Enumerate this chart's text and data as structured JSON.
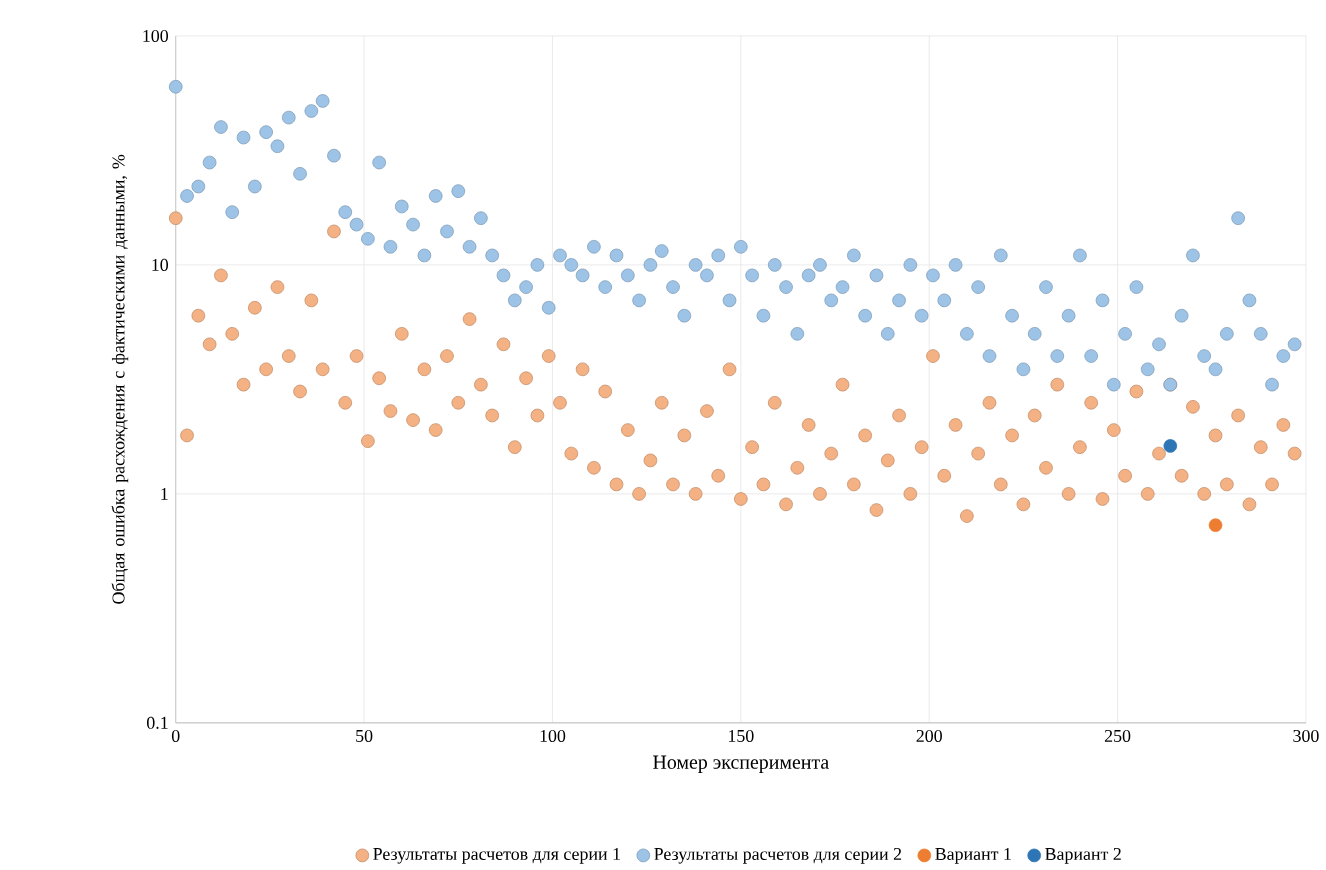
{
  "chart_data": {
    "type": "scatter",
    "xlabel": "Номер эксперимента",
    "ylabel": "Общая ошибка расхождения с фактическими данными, %",
    "xlim": [
      0,
      300
    ],
    "xticks": [
      0,
      50,
      100,
      150,
      200,
      250,
      300
    ],
    "ylim": [
      0.1,
      100
    ],
    "yticks": [
      0.1,
      1,
      10,
      100
    ],
    "log": "y",
    "grid": true,
    "legend": "bottom",
    "marker": "circle",
    "series": [
      {
        "name": "Результаты  расчетов для серии 1",
        "color": "#f4b183",
        "x": [
          0,
          3,
          6,
          9,
          12,
          15,
          18,
          21,
          24,
          27,
          30,
          33,
          36,
          39,
          42,
          45,
          48,
          51,
          54,
          57,
          60,
          63,
          66,
          69,
          72,
          75,
          78,
          81,
          84,
          87,
          90,
          93,
          96,
          99,
          102,
          105,
          108,
          111,
          114,
          117,
          120,
          123,
          126,
          129,
          132,
          135,
          138,
          141,
          144,
          147,
          150,
          153,
          156,
          159,
          162,
          165,
          168,
          171,
          174,
          177,
          180,
          183,
          186,
          189,
          192,
          195,
          198,
          201,
          204,
          207,
          210,
          213,
          216,
          219,
          222,
          225,
          228,
          231,
          234,
          237,
          240,
          243,
          246,
          249,
          252,
          255,
          258,
          261,
          264,
          267,
          270,
          273,
          276,
          279,
          282,
          285,
          288,
          291,
          294,
          297
        ],
        "values": [
          16,
          1.8,
          6,
          4.5,
          9,
          5,
          3,
          6.5,
          3.5,
          8,
          4,
          2.8,
          7,
          3.5,
          14,
          2.5,
          4,
          1.7,
          3.2,
          2.3,
          5,
          2.1,
          3.5,
          1.9,
          4,
          2.5,
          5.8,
          3,
          2.2,
          4.5,
          1.6,
          3.2,
          2.2,
          4,
          2.5,
          1.5,
          3.5,
          1.3,
          2.8,
          1.1,
          1.9,
          1.0,
          1.4,
          2.5,
          1.1,
          1.8,
          1.0,
          2.3,
          1.2,
          3.5,
          0.95,
          1.6,
          1.1,
          2.5,
          0.9,
          1.3,
          2.0,
          1.0,
          1.5,
          3.0,
          1.1,
          1.8,
          0.85,
          1.4,
          2.2,
          1.0,
          1.6,
          4.0,
          1.2,
          2.0,
          0.8,
          1.5,
          2.5,
          1.1,
          1.8,
          0.9,
          2.2,
          1.3,
          3.0,
          1.0,
          1.6,
          2.5,
          0.95,
          1.9,
          1.2,
          2.8,
          1.0,
          1.5,
          3.0,
          1.2,
          2.4,
          1.0,
          1.8,
          1.1,
          2.2,
          0.9,
          1.6,
          1.1,
          2.0,
          1.5
        ]
      },
      {
        "name": "Результаты  расчетов для серии 2",
        "color": "#9dc3e6",
        "x": [
          0,
          3,
          6,
          9,
          12,
          15,
          18,
          21,
          24,
          27,
          30,
          33,
          36,
          39,
          42,
          45,
          48,
          51,
          54,
          57,
          60,
          63,
          66,
          69,
          72,
          75,
          78,
          81,
          84,
          87,
          90,
          93,
          96,
          99,
          102,
          105,
          108,
          111,
          114,
          117,
          120,
          123,
          126,
          129,
          132,
          135,
          138,
          141,
          144,
          147,
          150,
          153,
          156,
          159,
          162,
          165,
          168,
          171,
          174,
          177,
          180,
          183,
          186,
          189,
          192,
          195,
          198,
          201,
          204,
          207,
          210,
          213,
          216,
          219,
          222,
          225,
          228,
          231,
          234,
          237,
          240,
          243,
          246,
          249,
          252,
          255,
          258,
          261,
          264,
          267,
          270,
          273,
          276,
          279,
          282,
          285,
          288,
          291,
          294,
          297
        ],
        "values": [
          60,
          20,
          22,
          28,
          40,
          17,
          36,
          22,
          38,
          33,
          44,
          25,
          47,
          52,
          30,
          17,
          15,
          13,
          28,
          12,
          18,
          15,
          11,
          20,
          14,
          21,
          12,
          16,
          11,
          9,
          7,
          8,
          10,
          6.5,
          11,
          10,
          9,
          12,
          8,
          11,
          9,
          7,
          10,
          11.5,
          8,
          6,
          10,
          9,
          11,
          7,
          12,
          9,
          6,
          10,
          8,
          5,
          9,
          10,
          7,
          8,
          11,
          6,
          9,
          5,
          7,
          10,
          6,
          9,
          7,
          10,
          5,
          8,
          4,
          11,
          6,
          3.5,
          5,
          8,
          4,
          6,
          11,
          4,
          7,
          3,
          5,
          8,
          3.5,
          4.5,
          3,
          6,
          11,
          4,
          3.5,
          5,
          16,
          7,
          5,
          3,
          4,
          4.5
        ]
      },
      {
        "name": "Вариант  1",
        "color": "#ed7d31",
        "x": [
          276
        ],
        "values": [
          0.73
        ]
      },
      {
        "name": "Вариант  2",
        "color": "#2e75b6",
        "x": [
          264
        ],
        "values": [
          1.62
        ]
      }
    ]
  }
}
